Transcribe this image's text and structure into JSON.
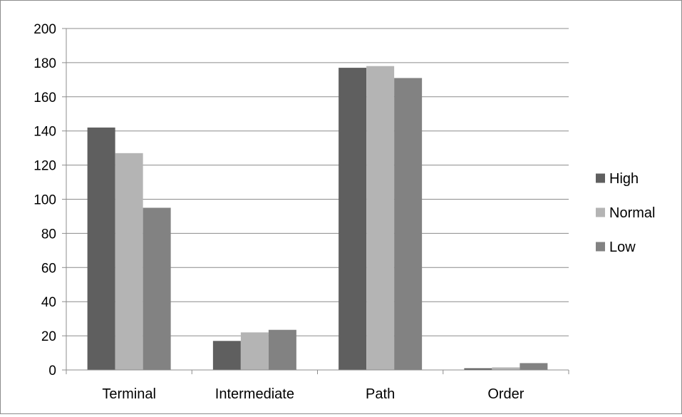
{
  "chart_data": {
    "type": "bar",
    "title": "",
    "xlabel": "",
    "ylabel": "",
    "categories": [
      "Terminal",
      "Intermediate",
      "Path",
      "Order"
    ],
    "series": [
      {
        "name": "High",
        "values": [
          142,
          17,
          177,
          1
        ],
        "color": "#5f5f5f"
      },
      {
        "name": "Normal",
        "values": [
          127,
          22,
          178,
          1.5
        ],
        "color": "#b4b4b4"
      },
      {
        "name": "Low",
        "values": [
          95,
          23.5,
          171,
          4
        ],
        "color": "#828282"
      }
    ],
    "ylim": [
      0,
      200
    ],
    "y_ticks": [
      "0",
      "20",
      "40",
      "60",
      "80",
      "100",
      "120",
      "140",
      "160",
      "180",
      "200"
    ],
    "grid": true,
    "legend_position": "right"
  }
}
